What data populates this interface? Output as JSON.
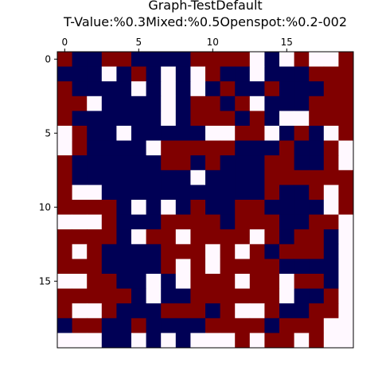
{
  "chart_data": {
    "type": "heatmap",
    "title": [
      "Graph-TestDefault",
      "T-Value:%0.3Mixed:%0.5Openspot:%0.2-002"
    ],
    "xlabel": "",
    "ylabel": "",
    "x_ticks": [
      0,
      5,
      10,
      15
    ],
    "y_ticks": [
      0,
      5,
      10,
      15
    ],
    "x_axis_position": "top",
    "grid": false,
    "legend": "none",
    "colors": {
      "0": "#000055",
      "1": "#800000",
      "2": "#fff8ff"
    },
    "color_names": {
      "0": "navy",
      "1": "maroon",
      "2": "white"
    },
    "grid_size": [
      20,
      20
    ],
    "values": [
      [
        1,
        0,
        0,
        1,
        1,
        0,
        0,
        0,
        0,
        1,
        1,
        1,
        1,
        2,
        0,
        2,
        1,
        2,
        2,
        1
      ],
      [
        0,
        0,
        0,
        2,
        0,
        1,
        0,
        2,
        0,
        2,
        1,
        0,
        0,
        2,
        0,
        0,
        0,
        1,
        1,
        1
      ],
      [
        1,
        0,
        0,
        0,
        0,
        2,
        0,
        2,
        0,
        2,
        0,
        1,
        0,
        0,
        1,
        0,
        0,
        0,
        1,
        1
      ],
      [
        1,
        1,
        2,
        0,
        0,
        0,
        0,
        2,
        0,
        1,
        1,
        0,
        1,
        2,
        0,
        0,
        0,
        1,
        1,
        1
      ],
      [
        1,
        0,
        0,
        0,
        0,
        0,
        0,
        2,
        0,
        1,
        1,
        1,
        0,
        1,
        0,
        2,
        2,
        1,
        1,
        1
      ],
      [
        2,
        1,
        0,
        0,
        2,
        0,
        0,
        0,
        0,
        0,
        2,
        2,
        1,
        1,
        2,
        0,
        1,
        0,
        2,
        1
      ],
      [
        2,
        1,
        0,
        0,
        0,
        0,
        2,
        1,
        1,
        1,
        1,
        1,
        0,
        0,
        0,
        1,
        0,
        0,
        1,
        2
      ],
      [
        1,
        0,
        0,
        0,
        0,
        0,
        0,
        1,
        1,
        0,
        1,
        0,
        0,
        0,
        1,
        1,
        0,
        0,
        1,
        2
      ],
      [
        1,
        0,
        0,
        0,
        0,
        0,
        0,
        0,
        0,
        2,
        0,
        0,
        0,
        0,
        1,
        1,
        1,
        1,
        1,
        1
      ],
      [
        1,
        2,
        2,
        0,
        0,
        0,
        0,
        0,
        0,
        0,
        0,
        0,
        0,
        0,
        1,
        0,
        0,
        1,
        2,
        1
      ],
      [
        1,
        1,
        1,
        1,
        0,
        2,
        0,
        2,
        0,
        1,
        0,
        0,
        1,
        1,
        0,
        0,
        0,
        0,
        2,
        1
      ],
      [
        2,
        2,
        2,
        1,
        0,
        0,
        0,
        1,
        1,
        1,
        1,
        0,
        1,
        1,
        1,
        0,
        0,
        1,
        1,
        2
      ],
      [
        1,
        1,
        1,
        1,
        0,
        2,
        1,
        1,
        2,
        1,
        1,
        1,
        1,
        2,
        1,
        0,
        1,
        1,
        0,
        2
      ],
      [
        1,
        2,
        1,
        0,
        0,
        0,
        0,
        1,
        1,
        1,
        2,
        1,
        2,
        1,
        0,
        1,
        1,
        1,
        0,
        2
      ],
      [
        1,
        1,
        1,
        0,
        0,
        0,
        0,
        1,
        2,
        1,
        2,
        1,
        1,
        1,
        1,
        0,
        0,
        0,
        0,
        2
      ],
      [
        2,
        2,
        1,
        1,
        0,
        0,
        2,
        0,
        2,
        1,
        1,
        1,
        2,
        1,
        1,
        2,
        1,
        1,
        0,
        2
      ],
      [
        1,
        1,
        1,
        1,
        1,
        0,
        2,
        0,
        0,
        1,
        1,
        1,
        1,
        1,
        1,
        2,
        0,
        0,
        1,
        2
      ],
      [
        1,
        2,
        2,
        1,
        0,
        0,
        0,
        1,
        1,
        1,
        0,
        1,
        2,
        2,
        1,
        0,
        0,
        1,
        1,
        2
      ],
      [
        0,
        1,
        1,
        0,
        0,
        1,
        0,
        0,
        0,
        0,
        1,
        1,
        1,
        1,
        0,
        1,
        1,
        1,
        2,
        2
      ],
      [
        2,
        2,
        2,
        0,
        0,
        2,
        0,
        2,
        0,
        2,
        2,
        2,
        1,
        2,
        1,
        1,
        2,
        1,
        2,
        2
      ]
    ]
  }
}
